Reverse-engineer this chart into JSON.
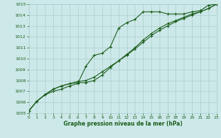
{
  "x_values": [
    0,
    1,
    2,
    3,
    4,
    5,
    6,
    7,
    8,
    9,
    10,
    11,
    12,
    13,
    14,
    15,
    16,
    17,
    18,
    19,
    20,
    21,
    22,
    23
  ],
  "line1": [
    1005.2,
    1006.1,
    1006.7,
    1007.0,
    1007.2,
    1007.5,
    1007.7,
    1009.3,
    1010.3,
    1010.5,
    1011.1,
    1012.8,
    1013.3,
    1013.6,
    1014.3,
    1014.3,
    1014.3,
    1014.1,
    1014.1,
    1014.1,
    1014.3,
    1014.4,
    1014.9,
    1015.0
  ],
  "line2": [
    1005.2,
    1006.1,
    1006.7,
    1007.2,
    1007.5,
    1007.7,
    1007.8,
    1007.8,
    1008.0,
    1008.5,
    1009.2,
    1009.8,
    1010.3,
    1010.9,
    1011.5,
    1012.1,
    1012.6,
    1013.0,
    1013.4,
    1013.7,
    1014.0,
    1014.3,
    1014.6,
    1015.0
  ],
  "line3": [
    1005.2,
    1006.1,
    1006.7,
    1007.2,
    1007.5,
    1007.7,
    1007.9,
    1008.0,
    1008.3,
    1008.8,
    1009.3,
    1009.8,
    1010.4,
    1011.0,
    1011.7,
    1012.3,
    1012.8,
    1013.2,
    1013.5,
    1013.8,
    1014.1,
    1014.3,
    1014.6,
    1015.0
  ],
  "bg_color": "#cce8e8",
  "grid_color": "#aacece",
  "line_color": "#1a5c1a",
  "xlabel": "Graphe pression niveau de la mer (hPa)",
  "xlabel_color": "#1a5c1a",
  "tick_color": "#1a5c1a",
  "ylim": [
    1005,
    1015
  ],
  "xlim": [
    0,
    23
  ],
  "yticks": [
    1005,
    1006,
    1007,
    1008,
    1009,
    1010,
    1011,
    1012,
    1013,
    1014,
    1015
  ],
  "xticks": [
    0,
    1,
    2,
    3,
    4,
    5,
    6,
    7,
    8,
    9,
    10,
    11,
    12,
    13,
    14,
    15,
    16,
    17,
    18,
    19,
    20,
    21,
    22,
    23
  ]
}
